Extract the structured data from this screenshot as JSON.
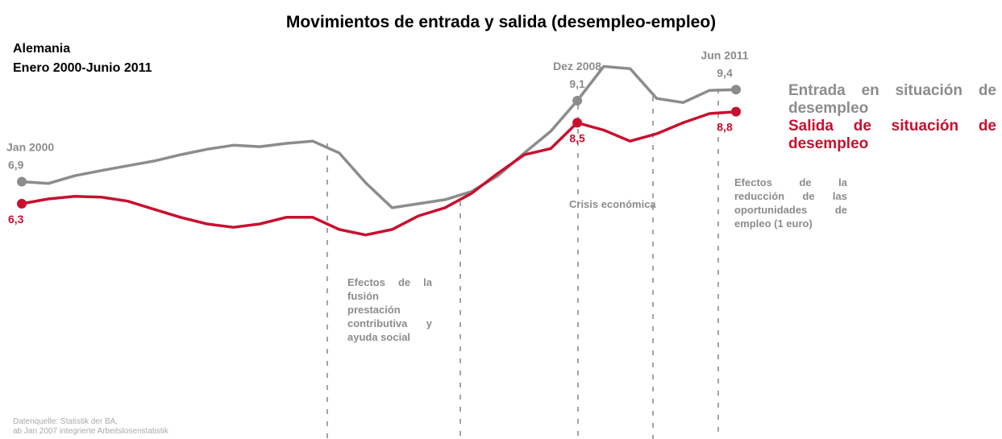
{
  "chart_data": {
    "type": "line",
    "title": "Movimientos de entrada y salida (desempleo-empleo)",
    "subtitle": [
      "Alemania",
      "Enero 2000-Junio 2011"
    ],
    "categories": [
      "Jan 2000",
      null,
      null,
      null,
      null,
      null,
      null,
      null,
      null,
      null,
      null,
      null,
      null,
      null,
      null,
      null,
      null,
      null,
      null,
      null,
      null,
      "Dez 2008",
      null,
      null,
      null,
      null,
      null,
      "Jun 2011"
    ],
    "series": [
      {
        "name": "Entrada en situación de desempleo",
        "color": "#8c8c8c",
        "values": [
          6.9,
          6.85,
          7.06,
          7.2,
          7.33,
          7.46,
          7.63,
          7.78,
          7.89,
          7.85,
          7.94,
          8.0,
          7.68,
          6.87,
          6.19,
          6.3,
          6.41,
          6.63,
          7.06,
          7.68,
          8.27,
          9.1,
          10.03,
          9.97,
          9.16,
          9.05,
          9.38,
          9.4
        ],
        "value_labels": [
          "6,9",
          null,
          null,
          null,
          null,
          null,
          null,
          null,
          null,
          null,
          null,
          null,
          null,
          null,
          null,
          null,
          null,
          null,
          null,
          null,
          null,
          "9,1",
          null,
          null,
          null,
          null,
          null,
          "9,4"
        ]
      },
      {
        "name": "Salida de situación de desempleo",
        "color": "#c8102e",
        "values": [
          6.3,
          6.43,
          6.5,
          6.48,
          6.37,
          6.15,
          5.93,
          5.75,
          5.66,
          5.75,
          5.93,
          5.93,
          5.6,
          5.45,
          5.6,
          5.97,
          6.19,
          6.58,
          7.13,
          7.63,
          7.8,
          8.5,
          8.3,
          8.0,
          8.2,
          8.5,
          8.75,
          8.8
        ],
        "value_labels": [
          "6,3",
          null,
          null,
          null,
          null,
          null,
          null,
          null,
          null,
          null,
          null,
          null,
          null,
          null,
          null,
          null,
          null,
          null,
          null,
          null,
          null,
          "8,5",
          null,
          null,
          null,
          null,
          null,
          "8,8"
        ]
      }
    ],
    "ylim": [
      4,
      10.5
    ],
    "annotations": [
      "Efectos de la fusión prestación contributiva y ayuda social",
      "Crisis económica",
      "Efectos de la reducción de las oportunidades de empleo (1 euro)"
    ],
    "source": [
      "Datenquelle: Statistik der BA,",
      "ab Jan 2007 integrierte Arbeitslosenstatistik"
    ]
  }
}
